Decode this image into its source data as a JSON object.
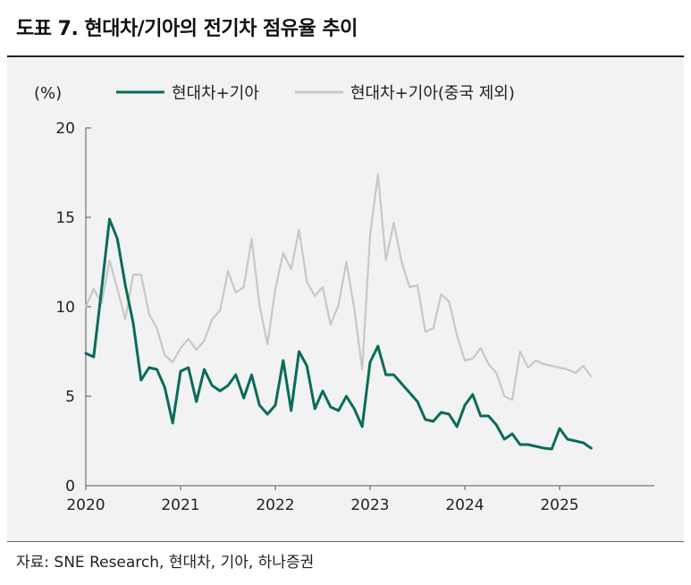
{
  "header": {
    "title": "도표 7. 현대차/기아의 전기차 점유율 추이"
  },
  "footer": {
    "source": "자료: SNE Research, 현대차, 기아, 하나증권"
  },
  "colors": {
    "series1": "#0a6b5a",
    "series2": "#c8c8c8",
    "axis": "#555555"
  },
  "chart_data": {
    "type": "line",
    "ylabel": "(%)",
    "xlabel": "",
    "ylim": [
      0,
      20
    ],
    "yticks": [
      0,
      5,
      10,
      15,
      20
    ],
    "xlim": [
      2020.0,
      2026.0
    ],
    "xticks": [
      "2020",
      "2021",
      "2022",
      "2023",
      "2024",
      "2025"
    ],
    "legend_position": "top",
    "grid": false,
    "series": [
      {
        "name": "현대차+기아",
        "color": "#0a6b5a",
        "start": "2020-01",
        "values": [
          7.4,
          7.2,
          11.0,
          14.9,
          13.8,
          11.2,
          9.1,
          5.9,
          6.6,
          6.5,
          5.5,
          3.5,
          6.4,
          6.6,
          4.7,
          6.5,
          5.6,
          5.3,
          5.6,
          6.2,
          4.9,
          6.2,
          4.5,
          4.0,
          4.5,
          7.0,
          4.2,
          7.5,
          6.7,
          4.3,
          5.3,
          4.4,
          4.2,
          5.0,
          4.3,
          3.3,
          6.9,
          7.8,
          6.2,
          6.2,
          5.7,
          5.2,
          4.7,
          3.7,
          3.6,
          4.1,
          4.0,
          3.3,
          4.5,
          5.1,
          3.9,
          3.9,
          3.4,
          2.6,
          2.9,
          2.3,
          2.3,
          2.2,
          2.1,
          2.05,
          3.2,
          2.6,
          2.5,
          2.4,
          2.1
        ]
      },
      {
        "name": "현대차+기아(중국 제외)",
        "color": "#c8c8c8",
        "start": "2020-01",
        "values": [
          10.0,
          11.0,
          10.2,
          12.6,
          11.0,
          9.3,
          11.8,
          11.8,
          9.6,
          8.8,
          7.3,
          6.9,
          7.7,
          8.2,
          7.6,
          8.1,
          9.3,
          9.8,
          12.0,
          10.8,
          11.1,
          13.8,
          10.1,
          7.9,
          11.0,
          13.0,
          12.1,
          14.3,
          11.4,
          10.6,
          11.1,
          9.0,
          10.1,
          12.5,
          9.9,
          6.5,
          14.0,
          17.4,
          12.6,
          14.7,
          12.5,
          11.1,
          11.2,
          8.6,
          8.8,
          10.7,
          10.3,
          8.4,
          7.0,
          7.1,
          7.7,
          6.8,
          6.3,
          5.0,
          4.8,
          7.5,
          6.6,
          7.0,
          6.8,
          6.7,
          6.6,
          6.5,
          6.3,
          6.7,
          6.1
        ]
      }
    ]
  }
}
